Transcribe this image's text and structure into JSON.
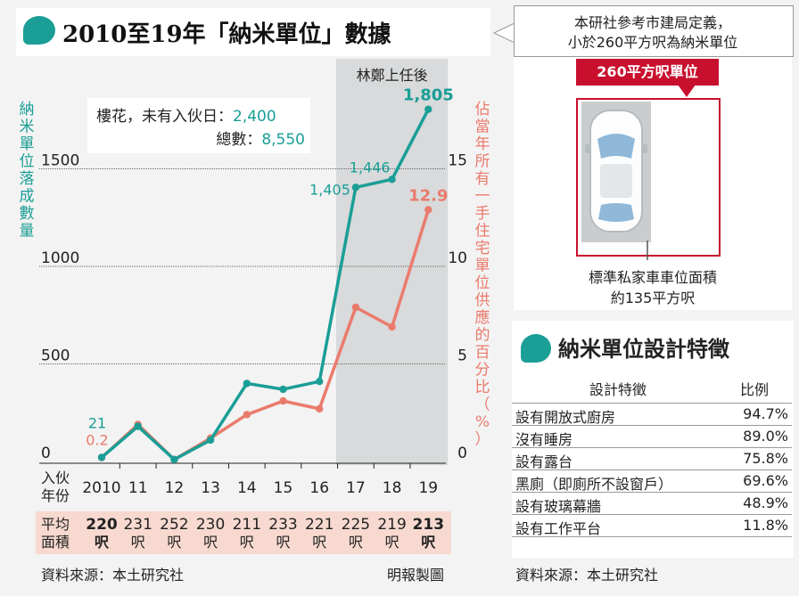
{
  "title": "2010至19年「納米單位」數據",
  "callout": {
    "line1": "本研社參考市建局定義，",
    "line2": "小於260平方呎為納米單位",
    "spot_tag": "260平方呎單位",
    "caption1": "標準私家車車位面積",
    "caption2": "約135平方呎"
  },
  "chart": {
    "left_axis_label": "納米單位落成數量",
    "right_axis_label": "佔當年所有一手住宅單位供應的百分比（%）",
    "shade_label": "林鄭上任後",
    "annotation_line1_label": "樓花，未有入伙日：",
    "annotation_line1_value": "2,400",
    "annotation_line2_label": "總數：",
    "annotation_line2_value": "8,550",
    "left_ticks": [
      "0",
      "500",
      "1000",
      "1500"
    ],
    "right_ticks": [
      "0",
      "5",
      "10",
      "15"
    ],
    "x_axis_label_line1": "入伙",
    "x_axis_label_line2": "年份",
    "size_label_line1": "平均",
    "size_label_line2": "面積",
    "size_unit": "呎",
    "label_first_units": "21",
    "label_first_pct": "0.2",
    "label_2017_units": "1,405",
    "label_2018_units": "1,446",
    "label_last_units": "1,805",
    "label_last_pct": "12.9"
  },
  "chart_data": {
    "type": "line",
    "categories": [
      "2010",
      "11",
      "12",
      "13",
      "14",
      "15",
      "16",
      "17",
      "18",
      "19"
    ],
    "series": [
      {
        "name": "納米單位落成數量",
        "axis": "left",
        "color": "#1a9e96",
        "values": [
          21,
          180,
          10,
          110,
          400,
          370,
          410,
          1405,
          1446,
          1805
        ]
      },
      {
        "name": "佔當年所有一手住宅單位供應的百分比（%）",
        "axis": "right",
        "color": "#ea7b6c",
        "values": [
          0.2,
          1.9,
          0.1,
          1.2,
          2.4,
          3.1,
          2.7,
          7.9,
          6.9,
          12.9
        ]
      }
    ],
    "average_size_sqft": [
      "220",
      "231",
      "252",
      "230",
      "211",
      "233",
      "221",
      "225",
      "219",
      "213"
    ],
    "ylim_left": [
      0,
      2000
    ],
    "ylim_right": [
      0,
      20
    ],
    "shaded_range": [
      "17",
      "19"
    ]
  },
  "features": {
    "title": "納米單位設計特徵",
    "header_feature": "設計特徵",
    "header_ratio": "比例",
    "rows": [
      {
        "feature": "設有開放式廚房",
        "ratio": "94.7%"
      },
      {
        "feature": "沒有睡房",
        "ratio": "89.0%"
      },
      {
        "feature": "設有露台",
        "ratio": "75.8%"
      },
      {
        "feature": "黑廁（即廁所不設窗戶）",
        "ratio": "69.6%"
      },
      {
        "feature": "設有玻璃幕牆",
        "ratio": "48.9%"
      },
      {
        "feature": "設有工作平台",
        "ratio": "11.8%"
      }
    ]
  },
  "source_left": "資料來源：本土研究社",
  "source_right": "資料來源：本土研究社",
  "credit": "明報製圖",
  "colors": {
    "teal": "#1a9e96",
    "salmon": "#ea7b6c",
    "red": "#c8102e",
    "shade": "#d8dadb"
  }
}
